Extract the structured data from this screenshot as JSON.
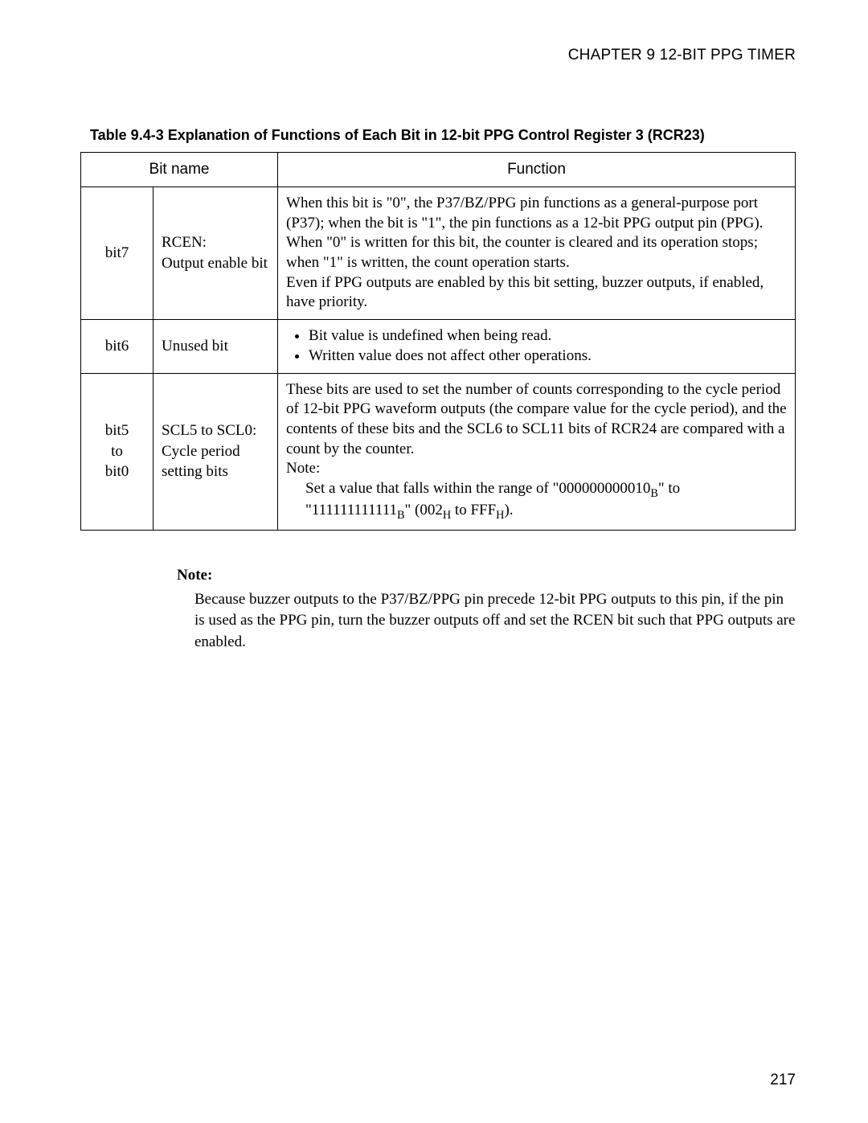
{
  "chapter_header": "CHAPTER 9  12-BIT PPG TIMER",
  "table_title": "Table 9.4-3  Explanation of Functions of Each Bit in 12-bit PPG Control Register 3 (RCR23)",
  "columns": {
    "bitname": "Bit name",
    "function": "Function"
  },
  "rows": {
    "r0": {
      "bit": "bit7",
      "name_line1": "RCEN:",
      "name_line2": "Output enable bit",
      "func": "When this bit is \"0\", the P37/BZ/PPG pin functions as a general-purpose port (P37); when the bit is \"1\", the pin functions as a 12-bit PPG output pin (PPG).\nWhen \"0\" is written for this bit, the counter is cleared and its operation stops; when \"1\" is written, the count operation starts.\nEven if PPG outputs are enabled by this bit setting, buzzer outputs, if enabled, have priority."
    },
    "r1": {
      "bit": "bit6",
      "name": "Unused bit",
      "bullet1": "Bit value is undefined when being read.",
      "bullet2": "Written value does not affect other operations."
    },
    "r2": {
      "bit_line1": "bit5",
      "bit_line2": "to",
      "bit_line3": "bit0",
      "name_line1": "SCL5 to SCL0:",
      "name_line2": "Cycle period",
      "name_line3": "setting bits",
      "func_main": "These bits are used to set the number of counts corresponding to the cycle period of 12-bit PPG waveform outputs (the compare value for the cycle period), and the contents of these bits and the SCL6 to SCL11 bits of RCR24 are compared with a count by the counter.",
      "func_note_label": "Note:",
      "func_note_pre": "Set a value that falls within the range of \"000000000010",
      "func_note_mid": "\" to \"111111111111",
      "func_note_post": "\" (002",
      "func_note_to": " to FFF",
      "func_note_end": ")."
    }
  },
  "note": {
    "label": "Note:",
    "body": "Because buzzer outputs to the P37/BZ/PPG pin precede 12-bit PPG outputs to this pin, if the pin is used as the PPG pin, turn the buzzer outputs off and set the RCEN bit such that PPG outputs are enabled."
  },
  "page_number": "217"
}
